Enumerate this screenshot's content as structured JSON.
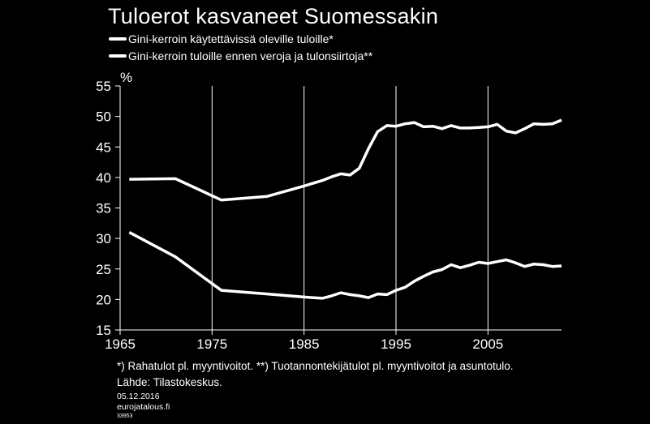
{
  "chart_data": {
    "type": "line",
    "title": "Tuloerot kasvaneet Suomessakin",
    "ylabel": "%",
    "xlim": [
      1965,
      2013
    ],
    "ylim": [
      15,
      55
    ],
    "xticks": [
      "1965",
      "1975",
      "1985",
      "1995",
      "2005"
    ],
    "yticks": [
      "15",
      "20",
      "25",
      "30",
      "35",
      "40",
      "45",
      "50",
      "55"
    ],
    "grid": "vertical",
    "legend_position": "top-left",
    "series": [
      {
        "name": "Gini-kerroin käytettävissä oleville tuloille*",
        "x": [
          1966,
          1971,
          1976,
          1981,
          1985,
          1987,
          1988,
          1989,
          1990,
          1991,
          1992,
          1993,
          1994,
          1995,
          1996,
          1997,
          1998,
          1999,
          2000,
          2001,
          2002,
          2003,
          2004,
          2005,
          2006,
          2007,
          2008,
          2009,
          2010,
          2011,
          2012,
          2013
        ],
        "values": [
          31.0,
          27.0,
          21.5,
          20.9,
          20.4,
          20.2,
          20.6,
          21.1,
          20.8,
          20.6,
          20.3,
          20.9,
          20.8,
          21.5,
          22.0,
          23.0,
          23.8,
          24.5,
          24.9,
          25.7,
          25.2,
          25.6,
          26.1,
          25.9,
          26.2,
          26.5,
          26.0,
          25.4,
          25.8,
          25.7,
          25.4,
          25.5
        ]
      },
      {
        "name": "Gini-kerroin tuloille ennen veroja ja tulonsiirtoja**",
        "x": [
          1966,
          1971,
          1976,
          1981,
          1985,
          1987,
          1988,
          1989,
          1990,
          1991,
          1992,
          1993,
          1994,
          1995,
          1996,
          1997,
          1998,
          1999,
          2000,
          2001,
          2002,
          2003,
          2004,
          2005,
          2006,
          2007,
          2008,
          2009,
          2010,
          2011,
          2012,
          2013
        ],
        "values": [
          39.7,
          39.8,
          36.3,
          36.9,
          38.6,
          39.5,
          40.1,
          40.6,
          40.4,
          41.5,
          44.7,
          47.5,
          48.5,
          48.4,
          48.8,
          49.0,
          48.3,
          48.4,
          48.0,
          48.5,
          48.1,
          48.1,
          48.2,
          48.3,
          48.7,
          47.6,
          47.3,
          48.0,
          48.8,
          48.7,
          48.8,
          49.4
        ]
      }
    ]
  },
  "footnote": "*) Rahatulot  pl. myyntivoitot. **) Tuotannontekijätulot  pl. myyntivoitot ja asuntotulo.",
  "source": "Lähde: Tilastokeskus.",
  "date": "05.12.2016",
  "website": "eurojatalous.fi",
  "id": "33953",
  "colors": {
    "background": "#000000",
    "foreground": "#ffffff"
  }
}
